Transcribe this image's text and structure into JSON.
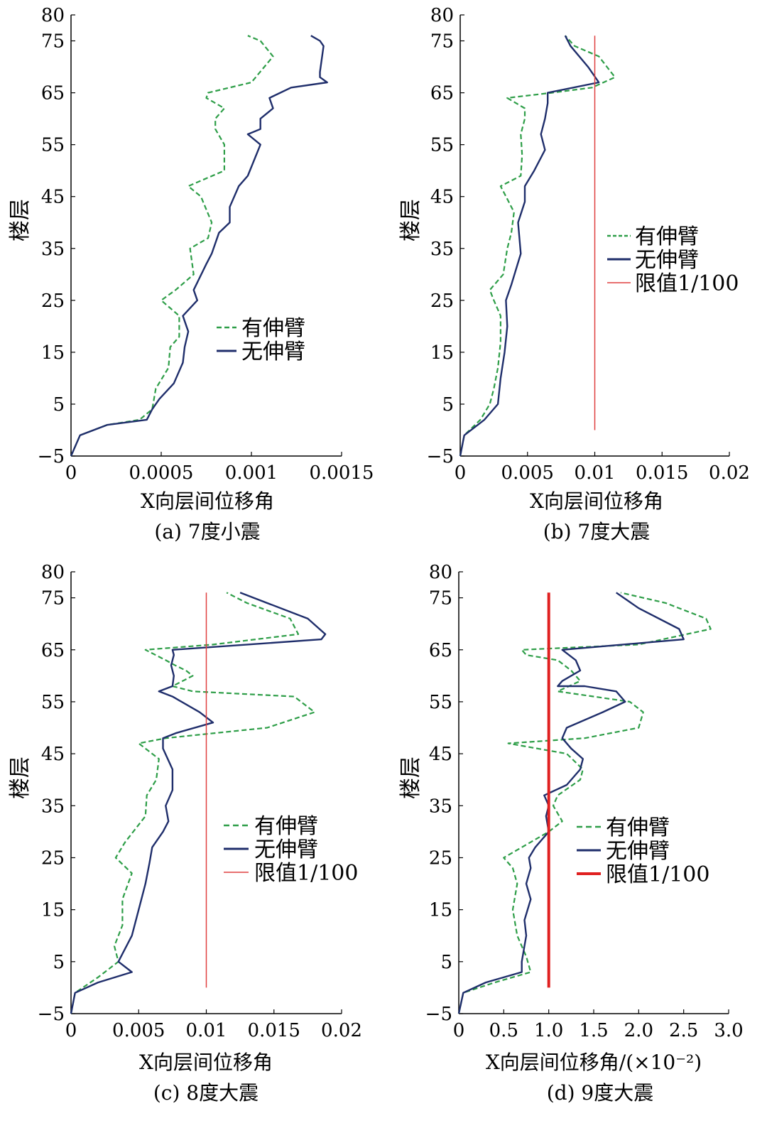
{
  "chart_data": [
    {
      "type": "line",
      "caption": "(a)  7度小震",
      "xlabel": "X向层间位移角",
      "ylabel": "楼层",
      "xlim": [
        0,
        0.0015
      ],
      "ylim": [
        -5,
        80
      ],
      "xticks": [
        "0",
        "0.0005",
        "0.001",
        "0.0015"
      ],
      "xtick_values": [
        0,
        0.0005,
        0.001,
        0.0015
      ],
      "yticks": [
        "−5",
        "5",
        "15",
        "25",
        "35",
        "45",
        "55",
        "65",
        "75",
        "80"
      ],
      "ytick_values": [
        -5,
        5,
        15,
        25,
        35,
        45,
        55,
        65,
        75,
        80
      ],
      "legend_position": "center-right",
      "series": [
        {
          "name": "有伸臂",
          "style": "dashed",
          "color": "#2e9e48",
          "x": [
            0,
            5e-05,
            0.0002,
            0.00038,
            0.00045,
            0.00047,
            0.00054,
            0.00055,
            0.0006,
            0.0006,
            0.0005,
            0.00058,
            0.00068,
            0.00066,
            0.00076,
            0.00078,
            0.00072,
            0.00065,
            0.00085,
            0.00085,
            0.0008,
            0.0008,
            0.00085,
            0.00075,
            0.00076,
            0.001,
            0.00112,
            0.00105,
            0.00098
          ],
          "y": [
            -5,
            -1,
            1,
            2,
            4,
            8,
            12,
            16,
            18,
            22,
            25,
            27,
            30,
            35,
            37,
            40,
            45,
            47,
            50,
            55,
            58,
            60,
            62,
            64,
            65,
            67,
            72,
            75,
            76
          ]
        },
        {
          "name": "无伸臂",
          "style": "solid",
          "color": "#1f2e6b",
          "x": [
            0,
            5e-05,
            0.0002,
            0.00042,
            0.00045,
            0.00049,
            0.00057,
            0.00062,
            0.00063,
            0.00065,
            0.00062,
            0.0007,
            0.00068,
            0.00075,
            0.00078,
            0.00082,
            0.00088,
            0.00088,
            0.00093,
            0.00098,
            0.00105,
            0.00098,
            0.00105,
            0.00105,
            0.00112,
            0.0011,
            0.00122,
            0.00142,
            0.00138,
            0.00138,
            0.0014,
            0.00138,
            0.00133
          ],
          "y": [
            -5,
            -1,
            1,
            2,
            4,
            6,
            9,
            13,
            16,
            19,
            22,
            25,
            27,
            32,
            34,
            38,
            40,
            43,
            47,
            49,
            55,
            57,
            58,
            60,
            62,
            64,
            66,
            67,
            68,
            69,
            74,
            75,
            76
          ]
        }
      ]
    },
    {
      "type": "line",
      "caption": "(b)  7度大震",
      "xlabel": "X向层间位移角",
      "ylabel": "楼层",
      "xlim": [
        0,
        0.02
      ],
      "ylim": [
        -5,
        80
      ],
      "xticks": [
        "0",
        "0.005",
        "0.01",
        "0.015",
        "0.02"
      ],
      "xtick_values": [
        0,
        0.005,
        0.01,
        0.015,
        0.02
      ],
      "yticks": [
        "−5",
        "5",
        "15",
        "25",
        "35",
        "45",
        "55",
        "65",
        "75",
        "80"
      ],
      "ytick_values": [
        -5,
        5,
        15,
        25,
        35,
        45,
        55,
        65,
        75,
        80
      ],
      "legend_position": "center-right",
      "limit_line": {
        "label": "限值1/100",
        "x": 0.01,
        "y_range": [
          0,
          76
        ]
      },
      "series": [
        {
          "name": "有伸臂",
          "style": "dashed",
          "color": "#2e9e48",
          "x": [
            0,
            0.0003,
            0.0015,
            0.0022,
            0.0025,
            0.0028,
            0.003,
            0.003,
            0.0025,
            0.0022,
            0.0032,
            0.0035,
            0.0038,
            0.004,
            0.003,
            0.0045,
            0.0046,
            0.0045,
            0.0048,
            0.0048,
            0.0035,
            0.0068,
            0.0098,
            0.0115,
            0.0103,
            0.0085,
            0.0078
          ],
          "y": [
            -5,
            -1,
            2,
            5,
            8,
            12,
            17,
            22,
            25,
            27,
            30,
            35,
            38,
            42,
            47,
            49,
            53,
            57,
            60,
            62,
            64,
            65,
            66,
            68,
            72,
            74,
            76
          ]
        },
        {
          "name": "无伸臂",
          "style": "solid",
          "color": "#1f2e6b",
          "x": [
            0,
            0.0003,
            0.0018,
            0.0028,
            0.003,
            0.0033,
            0.0035,
            0.0034,
            0.0038,
            0.0045,
            0.0043,
            0.0048,
            0.0048,
            0.0055,
            0.0063,
            0.006,
            0.0063,
            0.0065,
            0.0065,
            0.0103,
            0.0095,
            0.0082,
            0.0078
          ],
          "y": [
            -5,
            -1,
            2,
            5,
            10,
            15,
            20,
            25,
            28,
            34,
            40,
            44,
            47,
            50,
            54,
            57,
            60,
            63,
            65,
            67,
            70,
            74,
            76
          ]
        },
        {
          "name": "限值1/100",
          "style": "solid",
          "color": "#e04040",
          "x": [
            0.01,
            0.01
          ],
          "y": [
            0,
            76
          ]
        }
      ]
    },
    {
      "type": "line",
      "caption": "(c)  8度大震",
      "xlabel": "X向层间位移角",
      "ylabel": "楼层",
      "xlim": [
        0,
        0.02
      ],
      "ylim": [
        -5,
        80
      ],
      "xticks": [
        "0",
        "0.005",
        "0.01",
        "0.015",
        "0.02"
      ],
      "xtick_values": [
        0,
        0.005,
        0.01,
        0.015,
        0.02
      ],
      "yticks": [
        "−5",
        "5",
        "15",
        "25",
        "35",
        "45",
        "55",
        "65",
        "75",
        "80"
      ],
      "ytick_values": [
        -5,
        5,
        15,
        25,
        35,
        45,
        55,
        65,
        75,
        80
      ],
      "legend_position": "center-right",
      "limit_line": {
        "label": "限值1/100",
        "x": 0.01,
        "y_range": [
          0,
          76
        ]
      },
      "series": [
        {
          "name": "有伸臂",
          "style": "dashed",
          "color": "#2e9e48",
          "x": [
            0,
            0.0003,
            0.002,
            0.0035,
            0.0032,
            0.0038,
            0.0038,
            0.0045,
            0.0033,
            0.004,
            0.0055,
            0.0056,
            0.0063,
            0.0065,
            0.005,
            0.007,
            0.0145,
            0.018,
            0.0165,
            0.009,
            0.0075,
            0.009,
            0.0085,
            0.0077,
            0.007,
            0.0055,
            0.0105,
            0.0168,
            0.0162,
            0.013,
            0.0115
          ],
          "y": [
            -5,
            -1,
            2,
            5,
            8,
            12,
            17,
            22,
            25,
            28,
            33,
            37,
            40,
            44,
            47,
            48,
            50,
            53,
            56,
            57,
            58,
            60,
            61,
            62,
            63,
            65,
            66,
            68,
            71,
            74,
            76
          ]
        },
        {
          "name": "无伸臂",
          "style": "solid",
          "color": "#1f2e6b",
          "x": [
            0,
            0.0003,
            0.002,
            0.0045,
            0.0035,
            0.0045,
            0.005,
            0.0055,
            0.0058,
            0.006,
            0.0068,
            0.0072,
            0.007,
            0.0075,
            0.0075,
            0.0068,
            0.0068,
            0.0078,
            0.0105,
            0.0095,
            0.0075,
            0.0065,
            0.0075,
            0.0076,
            0.0074,
            0.0076,
            0.0075,
            0.0185,
            0.0188,
            0.0175,
            0.0125
          ],
          "y": [
            -5,
            -1,
            1,
            3,
            5,
            10,
            15,
            20,
            24,
            27,
            30,
            32,
            35,
            38,
            42,
            46,
            48,
            49,
            51,
            53,
            56,
            57,
            58,
            60,
            62,
            64,
            65,
            67,
            68,
            71,
            76
          ]
        },
        {
          "name": "限值1/100",
          "style": "solid",
          "color": "#e04040",
          "x": [
            0.01,
            0.01
          ],
          "y": [
            0,
            76
          ]
        }
      ]
    },
    {
      "type": "line",
      "caption": "(d)  9度大震",
      "xlabel": "X向层间位移角/(×10⁻²)",
      "ylabel": "楼层",
      "xlim": [
        0,
        3.0
      ],
      "ylim": [
        -5,
        80
      ],
      "xticks": [
        "0",
        "0.5",
        "1.0",
        "1.5",
        "2.0",
        "2.5",
        "3.0"
      ],
      "xtick_values": [
        0,
        0.5,
        1.0,
        1.5,
        2.0,
        2.5,
        3.0
      ],
      "yticks": [
        "−5",
        "5",
        "15",
        "25",
        "35",
        "45",
        "55",
        "65",
        "75",
        "80"
      ],
      "ytick_values": [
        -5,
        5,
        15,
        25,
        35,
        45,
        55,
        65,
        75,
        80
      ],
      "legend_position": "center-right",
      "limit_line": {
        "label": "限值1/100",
        "x": 1.0,
        "y_range": [
          0,
          76
        ]
      },
      "series": [
        {
          "name": "有伸臂",
          "style": "dashed",
          "color": "#2e9e48",
          "x": [
            0,
            0.05,
            0.4,
            0.8,
            0.75,
            0.65,
            0.6,
            0.65,
            0.6,
            0.5,
            0.7,
            1.0,
            1.15,
            1.05,
            1.1,
            1.35,
            1.38,
            1.2,
            0.55,
            1.4,
            2.0,
            2.05,
            1.9,
            1.1,
            1.35,
            1.25,
            1.1,
            0.75,
            0.7,
            2.0,
            2.8,
            2.75,
            2.3,
            1.8
          ],
          "y": [
            -5,
            -1,
            1,
            3,
            6,
            10,
            15,
            20,
            23,
            25,
            27,
            30,
            32,
            35,
            37,
            40,
            42,
            45,
            47,
            48,
            50,
            53,
            55,
            57,
            59,
            61,
            63,
            64,
            65,
            66,
            69,
            71,
            74,
            76
          ]
        },
        {
          "name": "无伸臂",
          "style": "solid",
          "color": "#1f2e6b",
          "x": [
            0,
            0.05,
            0.3,
            0.7,
            0.7,
            0.75,
            0.73,
            0.8,
            0.75,
            0.8,
            0.78,
            0.85,
            0.9,
            1.0,
            0.97,
            1.0,
            0.95,
            1.2,
            1.35,
            1.38,
            1.25,
            1.15,
            1.2,
            1.6,
            1.85,
            1.75,
            1.4,
            1.1,
            1.15,
            1.35,
            1.3,
            1.15,
            2.5,
            2.45,
            2.0,
            1.75
          ],
          "y": [
            -5,
            -1,
            1,
            3,
            5,
            10,
            13,
            17,
            20,
            23,
            25,
            27,
            28,
            30,
            33,
            35,
            37,
            39,
            42,
            44,
            46,
            48,
            50,
            53,
            55,
            57,
            58,
            58,
            59,
            61,
            63,
            65,
            67,
            69,
            73,
            76
          ]
        },
        {
          "name": "限值1/100",
          "style": "solid",
          "color": "#e02020",
          "x": [
            1.0,
            1.0
          ],
          "y": [
            0,
            76
          ]
        }
      ]
    }
  ]
}
